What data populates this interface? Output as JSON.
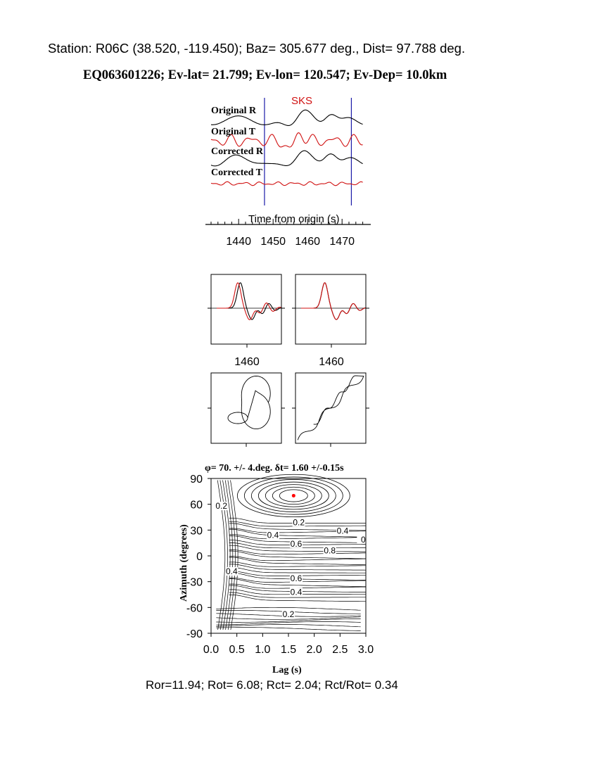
{
  "header": {
    "station_line": "Station: R06C (38.520, -119.450); Baz=  305.677 deg., Dist=   97.788 deg.",
    "event_line": "EQ063601226; Ev-lat=  21.799; Ev-lon= 120.547; Ev-Dep= 10.0km"
  },
  "footer": {
    "ratio_line": "Ror=11.94; Rot= 6.08; Rct= 2.04; Rct/Rot= 0.34"
  },
  "colors": {
    "radial_trace": "#000000",
    "transverse_trace": "#d01010",
    "window_marker": "#1a1aa8",
    "phase_label": "#d01010",
    "best_fit_marker": "#ff0000"
  },
  "chart_data": [
    {
      "type": "line",
      "name": "seismograms",
      "phase_label": "SKS",
      "trace_labels": [
        "Original R",
        "Original T",
        "Corrected R",
        "Corrected T"
      ],
      "xlabel": "Time from origin (s)",
      "x_ticks": [
        1440,
        1450,
        1460,
        1470
      ],
      "xlim": [
        1431,
        1479
      ],
      "window": [
        1447.5,
        1472.7
      ],
      "grid": false
    },
    {
      "type": "line",
      "name": "waveform-overlays",
      "panels": [
        "original",
        "corrected"
      ],
      "x_ticks": [
        1460
      ],
      "series": [
        "radial",
        "transverse"
      ]
    },
    {
      "type": "line",
      "name": "particle-motion",
      "panels": [
        "original",
        "corrected"
      ]
    },
    {
      "type": "heatmap",
      "name": "energy-contour",
      "title": "φ= 70. +/- 4.deg. δt= 1.60 +/-0.15s",
      "xlabel": "Lag (s)",
      "ylabel": "Azimuth (degrees)",
      "xlim": [
        0,
        3.0
      ],
      "ylim": [
        -90,
        90
      ],
      "x_ticks": [
        "0.0",
        "0.5",
        "1.0",
        "1.5",
        "2.0",
        "2.5",
        "3.0"
      ],
      "y_ticks": [
        "-90",
        "-60",
        "-30",
        "0",
        "30",
        "60",
        "90"
      ],
      "best_fit": {
        "lag": 1.6,
        "azimuth": 70
      },
      "contour_labels": [
        {
          "text": "0.2",
          "lag": 0.2,
          "azimuth": 58
        },
        {
          "text": "0.2",
          "lag": 1.7,
          "azimuth": 39
        },
        {
          "text": "0.4",
          "lag": 2.55,
          "azimuth": 29
        },
        {
          "text": "0",
          "lag": 2.95,
          "azimuth": 19
        },
        {
          "text": "0.4",
          "lag": 1.2,
          "azimuth": 24
        },
        {
          "text": "0.6",
          "lag": 1.65,
          "azimuth": 14
        },
        {
          "text": "0.8",
          "lag": 2.3,
          "azimuth": 6
        },
        {
          "text": "0.4",
          "lag": 0.4,
          "azimuth": -18
        },
        {
          "text": "0.6",
          "lag": 1.65,
          "azimuth": -26
        },
        {
          "text": "0.4",
          "lag": 1.65,
          "azimuth": -42
        },
        {
          "text": "0.2",
          "lag": 1.5,
          "azimuth": -68
        }
      ]
    }
  ]
}
